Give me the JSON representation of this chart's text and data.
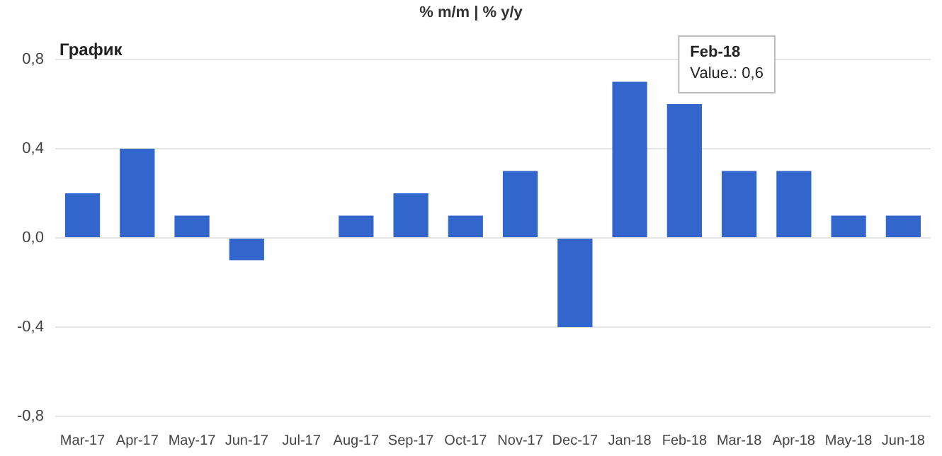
{
  "chart_data": {
    "type": "bar",
    "title": "График",
    "subtitle": "% m/m | % y/y",
    "categories": [
      "Mar-17",
      "Apr-17",
      "May-17",
      "Jun-17",
      "Jul-17",
      "Aug-17",
      "Sep-17",
      "Oct-17",
      "Nov-17",
      "Dec-17",
      "Jan-18",
      "Feb-18",
      "Mar-18",
      "Apr-18",
      "May-18",
      "Jun-18"
    ],
    "values": [
      0.2,
      0.4,
      0.1,
      -0.1,
      0,
      0.1,
      0.2,
      0.1,
      0.3,
      -0.4,
      0.7,
      0.6,
      0.3,
      0.3,
      0.1,
      0.1
    ],
    "color": "#3366cc",
    "ylim": [
      -0.8,
      0.8
    ],
    "yticks": [
      {
        "value": -0.8,
        "label": "-0,8"
      },
      {
        "value": -0.4,
        "label": "-0,4"
      },
      {
        "value": 0,
        "label": "0,0"
      },
      {
        "value": 0.4,
        "label": "0,4"
      },
      {
        "value": 0.8,
        "label": "0,8"
      }
    ],
    "grid": "y",
    "legend": false,
    "annotations": [
      {
        "text": "Feb-18\nValue.: 0,6",
        "x": "Feb-18",
        "y": 0.6
      }
    ]
  }
}
